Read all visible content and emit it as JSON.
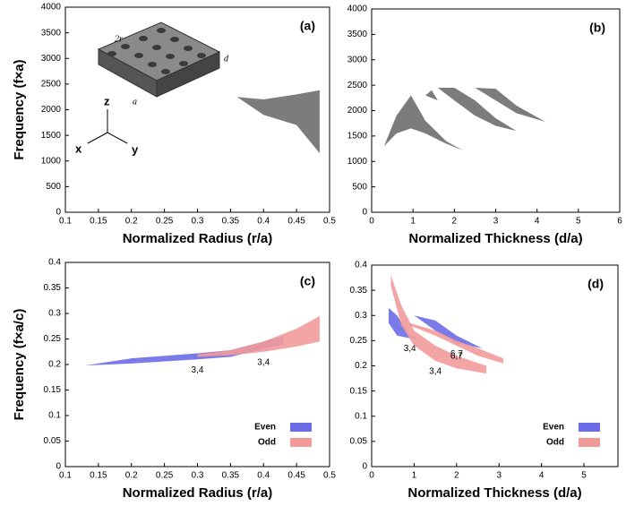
{
  "chart_data": [
    {
      "type": "band",
      "panel": "(a)",
      "xlabel": "Normalized Radius (r/a)",
      "ylabel": "Frequency (f×a)",
      "xlim": [
        0.1,
        0.5
      ],
      "xticks": [
        0.1,
        0.15,
        0.2,
        0.25,
        0.3,
        0.35,
        0.4,
        0.45,
        0.5
      ],
      "ylim": [
        0,
        4000
      ],
      "yticks": [
        0,
        500,
        1000,
        1500,
        2000,
        2500,
        3000,
        3500,
        4000
      ],
      "inset": {
        "labels": [
          "2r",
          "d",
          "a"
        ],
        "axes": [
          "z",
          "x",
          "y"
        ]
      },
      "series": [
        {
          "color": "#6e6e6e",
          "bands": [
            {
              "x": [
                0.36,
                0.4,
                0.45,
                0.485
              ],
              "upper": [
                2250,
                2200,
                2300,
                2380
              ],
              "lower": [
                2250,
                1900,
                1700,
                1150
              ]
            }
          ]
        }
      ]
    },
    {
      "type": "band",
      "panel": "(b)",
      "xlabel": "Normalized Thickness (d/a)",
      "xlim": [
        0,
        6
      ],
      "xticks": [
        0,
        1,
        2,
        3,
        4,
        5,
        6
      ],
      "ylim": [
        0,
        4000
      ],
      "yticks": [
        0,
        500,
        1000,
        1500,
        2000,
        2500,
        3000,
        3500,
        4000
      ],
      "series": [
        {
          "color": "#6e6e6e",
          "bands": [
            {
              "x": [
                0.3,
                0.6,
                0.95,
                1.3,
                1.8,
                2.2
              ],
              "upper": [
                1300,
                1900,
                2300,
                1800,
                1400,
                1220
              ],
              "lower": [
                1300,
                1550,
                1650,
                1550,
                1350,
                1220
              ]
            },
            {
              "x": [
                1.3,
                1.45,
                1.6
              ],
              "upper": [
                2300,
                2400,
                2200
              ],
              "lower": [
                2300,
                2250,
                2200
              ]
            },
            {
              "x": [
                1.6,
                2.0,
                2.5,
                3.0,
                3.5
              ],
              "upper": [
                2450,
                2450,
                2200,
                1850,
                1600
              ],
              "lower": [
                2450,
                2200,
                1900,
                1700,
                1600
              ]
            },
            {
              "x": [
                2.5,
                3.0,
                3.5,
                4.2
              ],
              "upper": [
                2450,
                2430,
                2100,
                1780
              ],
              "lower": [
                2450,
                2200,
                1950,
                1780
              ]
            }
          ]
        }
      ]
    },
    {
      "type": "band",
      "panel": "(c)",
      "xlabel": "Normalized Radius (r/a)",
      "ylabel": "Frequency (f×a/c)",
      "xlim": [
        0.1,
        0.5
      ],
      "xticks": [
        0.1,
        0.15,
        0.2,
        0.25,
        0.3,
        0.35,
        0.4,
        0.45,
        0.5
      ],
      "ylim": [
        0,
        0.4
      ],
      "yticks": [
        0,
        0.05,
        0.1,
        0.15,
        0.2,
        0.25,
        0.3,
        0.35,
        0.4
      ],
      "legend": "lower right",
      "series": [
        {
          "name": "Even",
          "color": "#6b6be6",
          "label_color": "#4848c0",
          "bands": [
            {
              "x": [
                0.13,
                0.2,
                0.3,
                0.35,
                0.43
              ],
              "upper": [
                0.198,
                0.212,
                0.222,
                0.228,
                0.255
              ],
              "lower": [
                0.198,
                0.202,
                0.21,
                0.215,
                0.24
              ],
              "label": "3,4"
            }
          ]
        },
        {
          "name": "Odd",
          "color": "#f29a9a",
          "label_color": "#c03030",
          "bands": [
            {
              "x": [
                0.3,
                0.35,
                0.4,
                0.45,
                0.485
              ],
              "upper": [
                0.22,
                0.228,
                0.245,
                0.27,
                0.295
              ],
              "lower": [
                0.215,
                0.218,
                0.225,
                0.235,
                0.245
              ],
              "label": "3,4"
            }
          ]
        }
      ]
    },
    {
      "type": "band",
      "panel": "(d)",
      "xlabel": "Normalized Thickness (d/a)",
      "xlim": [
        0,
        5.8
      ],
      "xticks": [
        0,
        1,
        2,
        3,
        4,
        5
      ],
      "ylim": [
        0,
        0.4
      ],
      "yticks": [
        0,
        0.05,
        0.1,
        0.15,
        0.2,
        0.25,
        0.3,
        0.35,
        0.4
      ],
      "legend": "lower right",
      "series": [
        {
          "name": "Even",
          "color": "#6b6be6",
          "label_color": "#4848c0",
          "bands": [
            {
              "x": [
                0.4,
                0.6,
                0.9,
                1.1
              ],
              "upper": [
                0.315,
                0.3,
                0.26,
                0.255
              ],
              "lower": [
                0.285,
                0.26,
                0.255,
                0.255
              ],
              "label": "3,4"
            },
            {
              "x": [
                1.0,
                1.5,
                2.0,
                2.6
              ],
              "upper": [
                0.3,
                0.29,
                0.26,
                0.235
              ],
              "lower": [
                0.3,
                0.27,
                0.245,
                0.235
              ],
              "label": "6,7"
            }
          ]
        },
        {
          "name": "Odd",
          "color": "#f29a9a",
          "label_color": "#c03030",
          "bands": [
            {
              "x": [
                0.45,
                0.7,
                1.0,
                1.5,
                2.0,
                2.7
              ],
              "upper": [
                0.38,
                0.32,
                0.27,
                0.24,
                0.22,
                0.2
              ],
              "lower": [
                0.36,
                0.28,
                0.24,
                0.21,
                0.195,
                0.185
              ],
              "label": "3,4"
            },
            {
              "x": [
                0.9,
                1.5,
                2.0,
                2.5,
                3.1
              ],
              "upper": [
                0.285,
                0.27,
                0.25,
                0.235,
                0.215
              ],
              "lower": [
                0.28,
                0.26,
                0.24,
                0.22,
                0.205
              ],
              "label": "6,7"
            }
          ]
        }
      ]
    }
  ]
}
